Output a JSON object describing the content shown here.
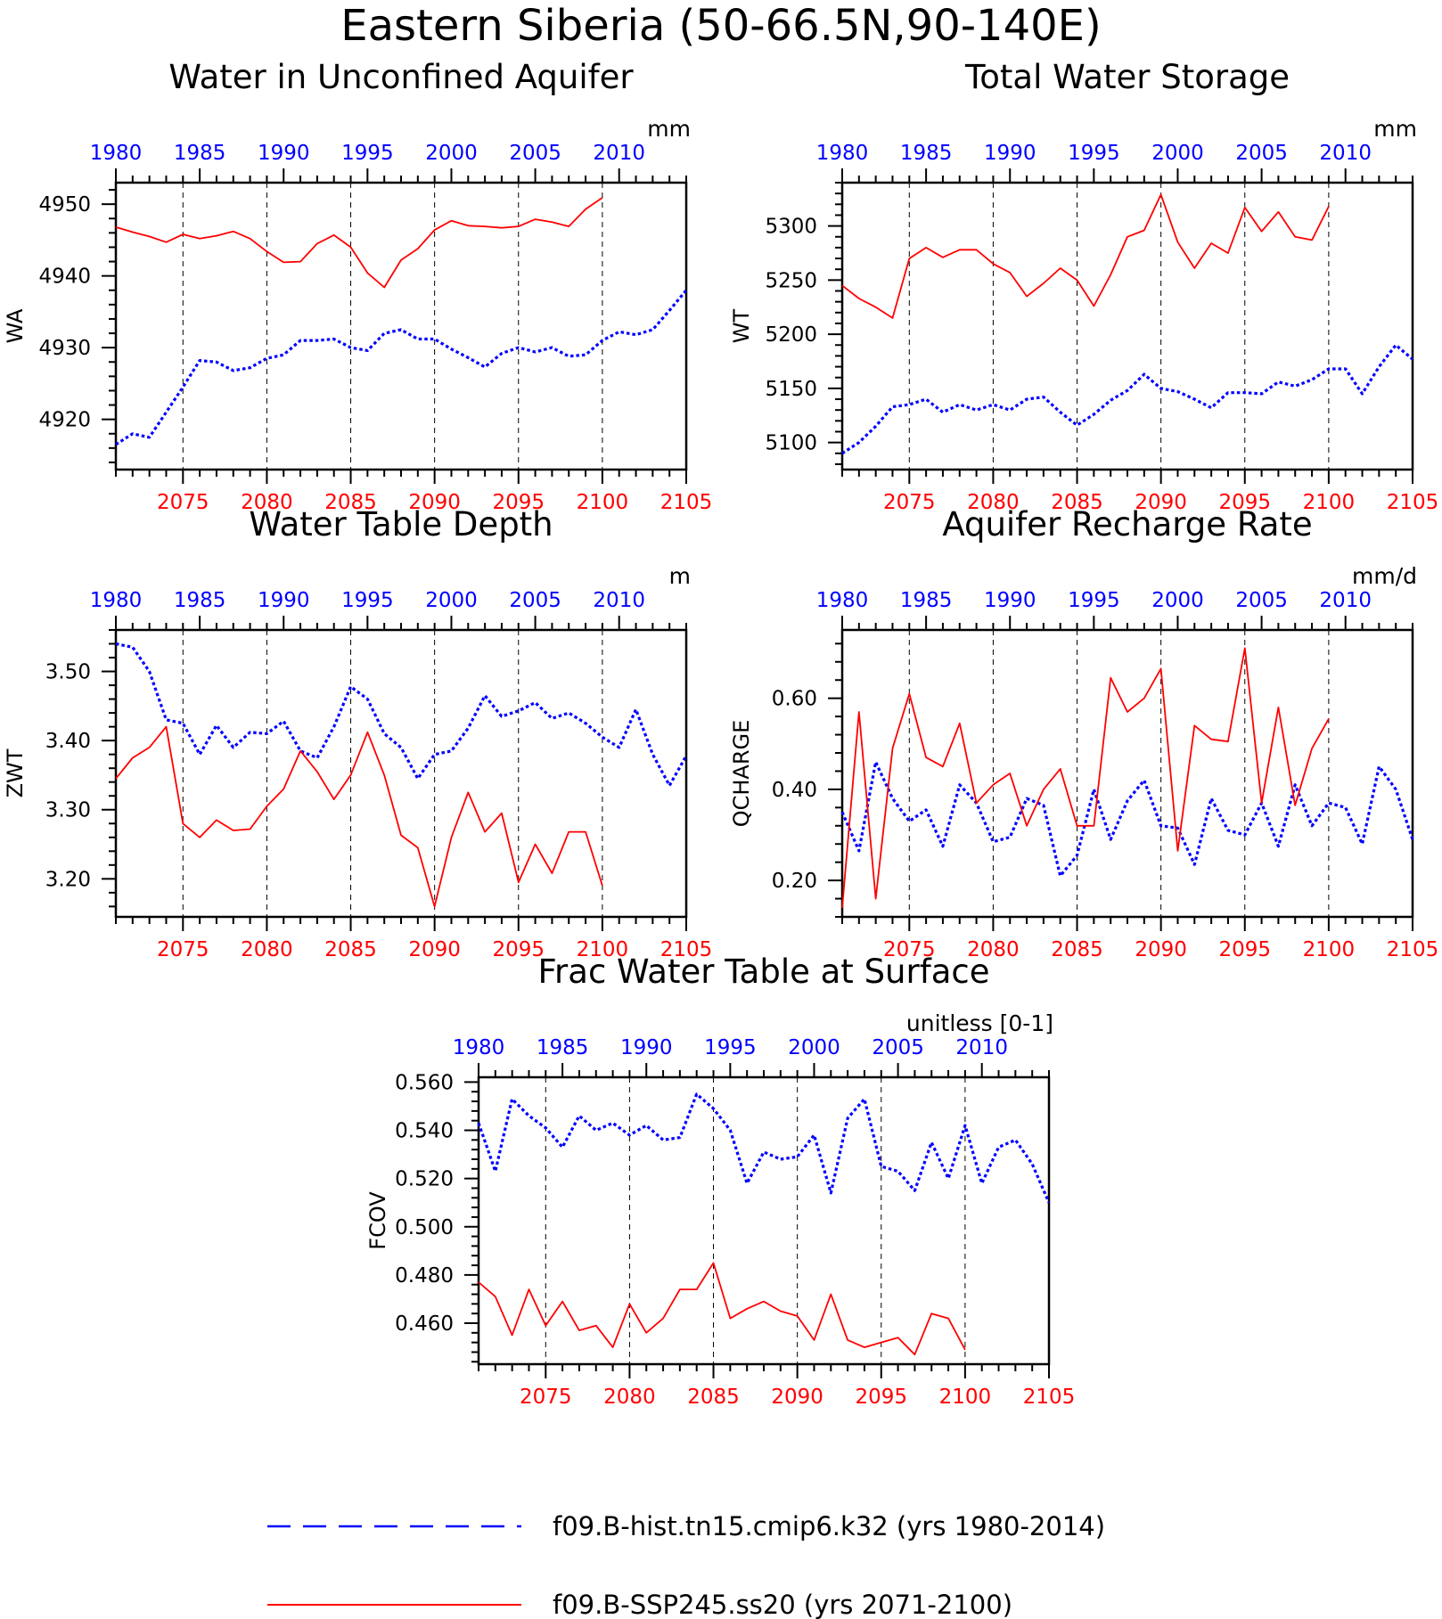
{
  "figure_title": "Eastern Siberia (50-66.5N,90-140E)",
  "colors": {
    "hist": "#0000ff",
    "future": "#ff0000",
    "axis": "#000000"
  },
  "legend": [
    {
      "label": "f09.B-hist.tn15.cmip6.k32 (yrs 1980-2014)",
      "style": "dashed",
      "color": "#0000ff"
    },
    {
      "label": "f09.B-SSP245.ss20 (yrs 2071-2100)",
      "style": "solid",
      "color": "#ff0000"
    }
  ],
  "chart_data": [
    {
      "type": "line",
      "title": "Water in Unconfined Aquifer",
      "ylabel": "WA",
      "units": "mm",
      "top_axis": {
        "range": [
          1980,
          2014
        ],
        "ticks": [
          "1980",
          "1985",
          "1990",
          "1995",
          "2000",
          "2005",
          "2010"
        ]
      },
      "bottom_axis": {
        "range": [
          2071,
          2105
        ],
        "ticks": [
          "2075",
          "2080",
          "2085",
          "2090",
          "2095",
          "2100",
          "2105"
        ]
      },
      "ylim": [
        4913,
        4953
      ],
      "yticks": [
        "4920",
        "4930",
        "4940",
        "4950"
      ],
      "grid": "dashed vertical lines at bottom-axis ticks",
      "series": [
        {
          "name": "f09.B-hist.tn15.cmip6.k32 (yrs 1980-2014)",
          "axis": "top",
          "x_start": 1980,
          "values": [
            4916.5,
            4918,
            4917.5,
            4921,
            4924.5,
            4928.2,
            4928,
            4926.8,
            4927.2,
            4928.5,
            4929,
            4931,
            4931,
            4931.2,
            4930,
            4929.6,
            4932,
            4932.5,
            4931.2,
            4931.2,
            4929.8,
            4928.6,
            4927.3,
            4929.2,
            4930,
            4929.4,
            4930,
            4928.8,
            4929,
            4931,
            4932.2,
            4931.8,
            4932.5,
            4935.2,
            4938
          ]
        },
        {
          "name": "f09.B-SSP245.ss20 (yrs 2071-2100)",
          "axis": "bottom",
          "x_start": 2071,
          "values": [
            4946.8,
            4946.1,
            4945.5,
            4944.7,
            4945.8,
            4945.2,
            4945.6,
            4946.2,
            4945.2,
            4943.4,
            4941.9,
            4942,
            4944.5,
            4945.7,
            4944,
            4940.4,
            4938.4,
            4942.2,
            4943.8,
            4946.4,
            4947.7,
            4947,
            4946.9,
            4946.7,
            4946.9,
            4947.9,
            4947.5,
            4946.9,
            4949.3,
            4950.9
          ]
        }
      ]
    },
    {
      "type": "line",
      "title": "Total Water Storage",
      "ylabel": "WT",
      "units": "mm",
      "top_axis": {
        "range": [
          1980,
          2014
        ],
        "ticks": [
          "1980",
          "1985",
          "1990",
          "1995",
          "2000",
          "2005",
          "2010"
        ]
      },
      "bottom_axis": {
        "range": [
          2071,
          2105
        ],
        "ticks": [
          "2075",
          "2080",
          "2085",
          "2090",
          "2095",
          "2100",
          "2105"
        ]
      },
      "ylim": [
        5075,
        5340
      ],
      "yticks": [
        "5100",
        "5150",
        "5200",
        "5250",
        "5300"
      ],
      "grid": "dashed vertical lines at bottom-axis ticks",
      "series": [
        {
          "name": "f09.B-hist.tn15.cmip6.k32 (yrs 1980-2014)",
          "axis": "top",
          "x_start": 1980,
          "values": [
            5090,
            5100,
            5115,
            5133,
            5135,
            5140,
            5128,
            5135,
            5130,
            5135,
            5130,
            5140,
            5142,
            5128,
            5116,
            5126,
            5139,
            5148,
            5163,
            5150,
            5147,
            5140,
            5132,
            5146,
            5146,
            5145,
            5156,
            5152,
            5158,
            5168,
            5168,
            5145,
            5170,
            5190,
            5177
          ]
        },
        {
          "name": "f09.B-SSP245.ss20 (yrs 2071-2100)",
          "axis": "bottom",
          "x_start": 2071,
          "values": [
            5245,
            5233,
            5225,
            5215,
            5270,
            5280,
            5271,
            5278,
            5278,
            5265,
            5257,
            5235,
            5247,
            5261,
            5250,
            5226,
            5255,
            5290,
            5296,
            5329,
            5285,
            5261,
            5284,
            5275,
            5317,
            5295,
            5313,
            5290,
            5287,
            5318
          ]
        }
      ]
    },
    {
      "type": "line",
      "title": "Water Table Depth",
      "ylabel": "ZWT",
      "units": "m",
      "top_axis": {
        "range": [
          1980,
          2014
        ],
        "ticks": [
          "1980",
          "1985",
          "1990",
          "1995",
          "2000",
          "2005",
          "2010"
        ]
      },
      "bottom_axis": {
        "range": [
          2071,
          2105
        ],
        "ticks": [
          "2075",
          "2080",
          "2085",
          "2090",
          "2095",
          "2100",
          "2105"
        ]
      },
      "ylim": [
        3.145,
        3.56
      ],
      "yticks": [
        "3.20",
        "3.30",
        "3.40",
        "3.50"
      ],
      "grid": "dashed vertical lines at bottom-axis ticks",
      "series": [
        {
          "name": "f09.B-hist.tn15.cmip6.k32 (yrs 1980-2014)",
          "axis": "top",
          "x_start": 1980,
          "values": [
            3.54,
            3.535,
            3.5,
            3.43,
            3.425,
            3.38,
            3.422,
            3.39,
            3.412,
            3.41,
            3.428,
            3.385,
            3.375,
            3.42,
            3.478,
            3.46,
            3.41,
            3.39,
            3.345,
            3.38,
            3.385,
            3.418,
            3.465,
            3.435,
            3.443,
            3.455,
            3.432,
            3.44,
            3.425,
            3.405,
            3.39,
            3.445,
            3.38,
            3.335,
            3.378
          ]
        },
        {
          "name": "f09.B-SSP245.ss20 (yrs 2071-2100)",
          "axis": "bottom",
          "x_start": 2071,
          "values": [
            3.345,
            3.375,
            3.39,
            3.42,
            3.28,
            3.26,
            3.285,
            3.27,
            3.272,
            3.305,
            3.33,
            3.385,
            3.355,
            3.315,
            3.35,
            3.412,
            3.35,
            3.263,
            3.245,
            3.16,
            3.26,
            3.325,
            3.268,
            3.295,
            3.195,
            3.25,
            3.208,
            3.268,
            3.268,
            3.19
          ]
        }
      ]
    },
    {
      "type": "line",
      "title": "Aquifer Recharge Rate",
      "ylabel": "QCHARGE",
      "units": "mm/d",
      "top_axis": {
        "range": [
          1980,
          2014
        ],
        "ticks": [
          "1980",
          "1985",
          "1990",
          "1995",
          "2000",
          "2005",
          "2010"
        ]
      },
      "bottom_axis": {
        "range": [
          2071,
          2105
        ],
        "ticks": [
          "2075",
          "2080",
          "2085",
          "2090",
          "2095",
          "2100",
          "2105"
        ]
      },
      "ylim": [
        0.12,
        0.75
      ],
      "yticks": [
        "0.20",
        "0.40",
        "0.60"
      ],
      "grid": "dashed vertical lines at bottom-axis ticks",
      "series": [
        {
          "name": "f09.B-hist.tn15.cmip6.k32 (yrs 1980-2014)",
          "axis": "top",
          "x_start": 1980,
          "values": [
            0.35,
            0.265,
            0.46,
            0.38,
            0.33,
            0.355,
            0.275,
            0.41,
            0.37,
            0.285,
            0.295,
            0.38,
            0.365,
            0.21,
            0.255,
            0.4,
            0.29,
            0.375,
            0.42,
            0.32,
            0.315,
            0.235,
            0.38,
            0.31,
            0.3,
            0.37,
            0.275,
            0.41,
            0.32,
            0.37,
            0.36,
            0.28,
            0.45,
            0.4,
            0.29
          ]
        },
        {
          "name": "f09.B-SSP245.ss20 (yrs 2071-2100)",
          "axis": "bottom",
          "x_start": 2071,
          "values": [
            0.14,
            0.57,
            0.16,
            0.49,
            0.61,
            0.47,
            0.45,
            0.545,
            0.37,
            0.41,
            0.435,
            0.32,
            0.4,
            0.445,
            0.32,
            0.32,
            0.645,
            0.57,
            0.6,
            0.665,
            0.265,
            0.54,
            0.51,
            0.505,
            0.71,
            0.37,
            0.58,
            0.365,
            0.49,
            0.555
          ]
        }
      ]
    },
    {
      "type": "line",
      "title": "Frac Water Table at Surface",
      "ylabel": "FCOV",
      "units": "unitless [0-1]",
      "top_axis": {
        "range": [
          1980,
          2014
        ],
        "ticks": [
          "1980",
          "1985",
          "1990",
          "1995",
          "2000",
          "2005",
          "2010"
        ]
      },
      "bottom_axis": {
        "range": [
          2071,
          2105
        ],
        "ticks": [
          "2075",
          "2080",
          "2085",
          "2090",
          "2095",
          "2100",
          "2105"
        ]
      },
      "ylim": [
        0.443,
        0.562
      ],
      "yticks": [
        "0.460",
        "0.480",
        "0.500",
        "0.520",
        "0.540",
        "0.560"
      ],
      "grid": "dashed vertical lines at bottom-axis ticks",
      "series": [
        {
          "name": "f09.B-hist.tn15.cmip6.k32 (yrs 1980-2014)",
          "axis": "top",
          "x_start": 1980,
          "values": [
            0.543,
            0.523,
            0.553,
            0.546,
            0.541,
            0.533,
            0.546,
            0.54,
            0.543,
            0.538,
            0.542,
            0.536,
            0.537,
            0.555,
            0.549,
            0.54,
            0.518,
            0.531,
            0.528,
            0.529,
            0.538,
            0.514,
            0.545,
            0.553,
            0.525,
            0.523,
            0.515,
            0.535,
            0.52,
            0.542,
            0.518,
            0.533,
            0.536,
            0.526,
            0.51
          ]
        },
        {
          "name": "f09.B-SSP245.ss20 (yrs 2071-2100)",
          "axis": "bottom",
          "x_start": 2071,
          "values": [
            0.477,
            0.471,
            0.455,
            0.474,
            0.459,
            0.469,
            0.457,
            0.459,
            0.45,
            0.468,
            0.456,
            0.462,
            0.474,
            0.474,
            0.485,
            0.462,
            0.466,
            0.469,
            0.465,
            0.463,
            0.453,
            0.472,
            0.453,
            0.45,
            0.452,
            0.454,
            0.447,
            0.464,
            0.462,
            0.449
          ]
        }
      ]
    }
  ]
}
